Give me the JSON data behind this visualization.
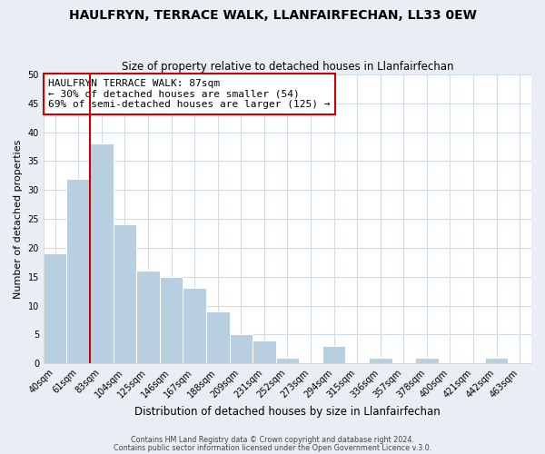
{
  "title": "HAULFRYN, TERRACE WALK, LLANFAIRFECHAN, LL33 0EW",
  "subtitle": "Size of property relative to detached houses in Llanfairfechan",
  "xlabel": "Distribution of detached houses by size in Llanfairfechan",
  "ylabel": "Number of detached properties",
  "bin_labels": [
    "40sqm",
    "61sqm",
    "83sqm",
    "104sqm",
    "125sqm",
    "146sqm",
    "167sqm",
    "188sqm",
    "209sqm",
    "231sqm",
    "252sqm",
    "273sqm",
    "294sqm",
    "315sqm",
    "336sqm",
    "357sqm",
    "378sqm",
    "400sqm",
    "421sqm",
    "442sqm",
    "463sqm"
  ],
  "bar_heights": [
    19,
    32,
    38,
    24,
    16,
    15,
    13,
    9,
    5,
    4,
    1,
    0,
    3,
    0,
    1,
    0,
    1,
    0,
    0,
    1,
    0
  ],
  "bar_color": "#b8cfe0",
  "bar_edge_color": "#ffffff",
  "vline_x": 1.5,
  "vline_color": "#cc0000",
  "ylim": [
    0,
    50
  ],
  "yticks": [
    0,
    5,
    10,
    15,
    20,
    25,
    30,
    35,
    40,
    45,
    50
  ],
  "annotation_title": "HAULFRYN TERRACE WALK: 87sqm",
  "annotation_line1": "← 30% of detached houses are smaller (54)",
  "annotation_line2": "69% of semi-detached houses are larger (125) →",
  "annotation_box_facecolor": "#ffffff",
  "annotation_box_edgecolor": "#cc0000",
  "footer1": "Contains HM Land Registry data © Crown copyright and database right 2024.",
  "footer2": "Contains public sector information licensed under the Open Government Licence v.3.0.",
  "plot_bg_color": "#ffffff",
  "fig_bg_color": "#e8eef4",
  "grid_color": "#d0dce8",
  "title_fontsize": 10,
  "subtitle_fontsize": 8.5,
  "tick_fontsize": 7,
  "ylabel_fontsize": 8,
  "xlabel_fontsize": 8.5
}
